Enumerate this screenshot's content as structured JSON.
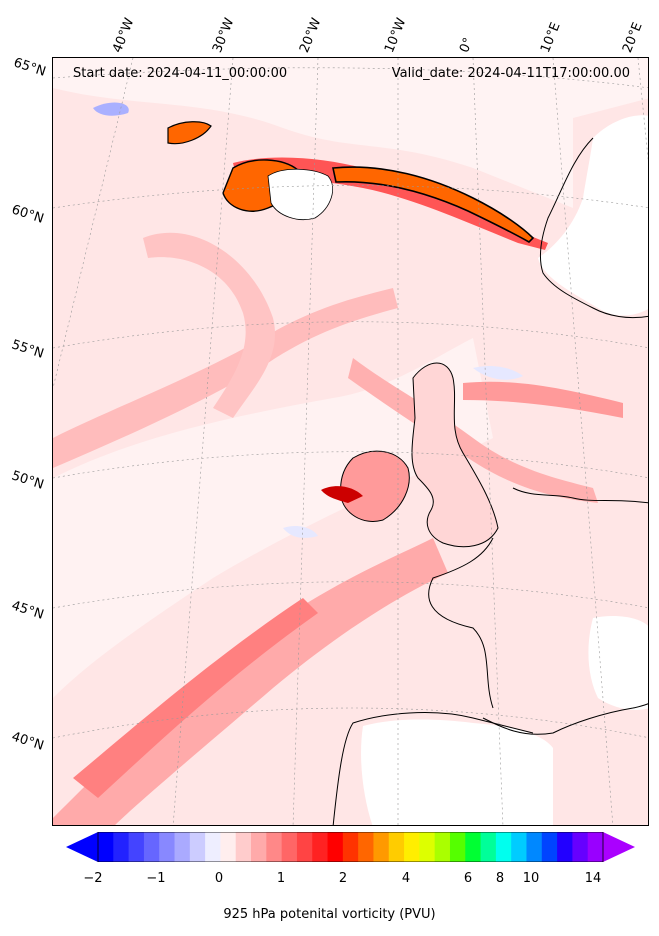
{
  "header": {
    "start_date": "Start date: 2024-04-11_00:00:00",
    "valid_date": "Valid_date: 2024-04-11T17:00:00.00"
  },
  "longitude_labels": [
    "40°W",
    "30°W",
    "20°W",
    "10°W",
    "0°",
    "10°E",
    "20°E"
  ],
  "latitude_labels": [
    "65°N",
    "60°N",
    "55°N",
    "50°N",
    "45°N",
    "40°N"
  ],
  "colorbar": {
    "label": "925 hPa potenital vorticity (PVU)",
    "ticks": [
      "−2",
      "−1",
      "0",
      "1",
      "2",
      "4",
      "6",
      "8",
      "10",
      "14"
    ],
    "colors": [
      "#0000ff",
      "#2222ff",
      "#4444ff",
      "#6666ff",
      "#8888ff",
      "#aaaaff",
      "#ccccff",
      "#eeeeff",
      "#ffeeee",
      "#ffcccc",
      "#ffaaaa",
      "#ff8888",
      "#ff6666",
      "#ff4444",
      "#ff2222",
      "#ff0000",
      "#ff3300",
      "#ff6600",
      "#ff9900",
      "#ffcc00",
      "#ffee00",
      "#ddff00",
      "#aaff00",
      "#55ff00",
      "#00ff33",
      "#00ff99",
      "#00ffee",
      "#00ccff",
      "#0088ff",
      "#0044ff",
      "#2200ff",
      "#6600ff",
      "#9900ff"
    ],
    "extend_low_color": "#0000ff",
    "extend_high_color": "#aa00ff"
  }
}
